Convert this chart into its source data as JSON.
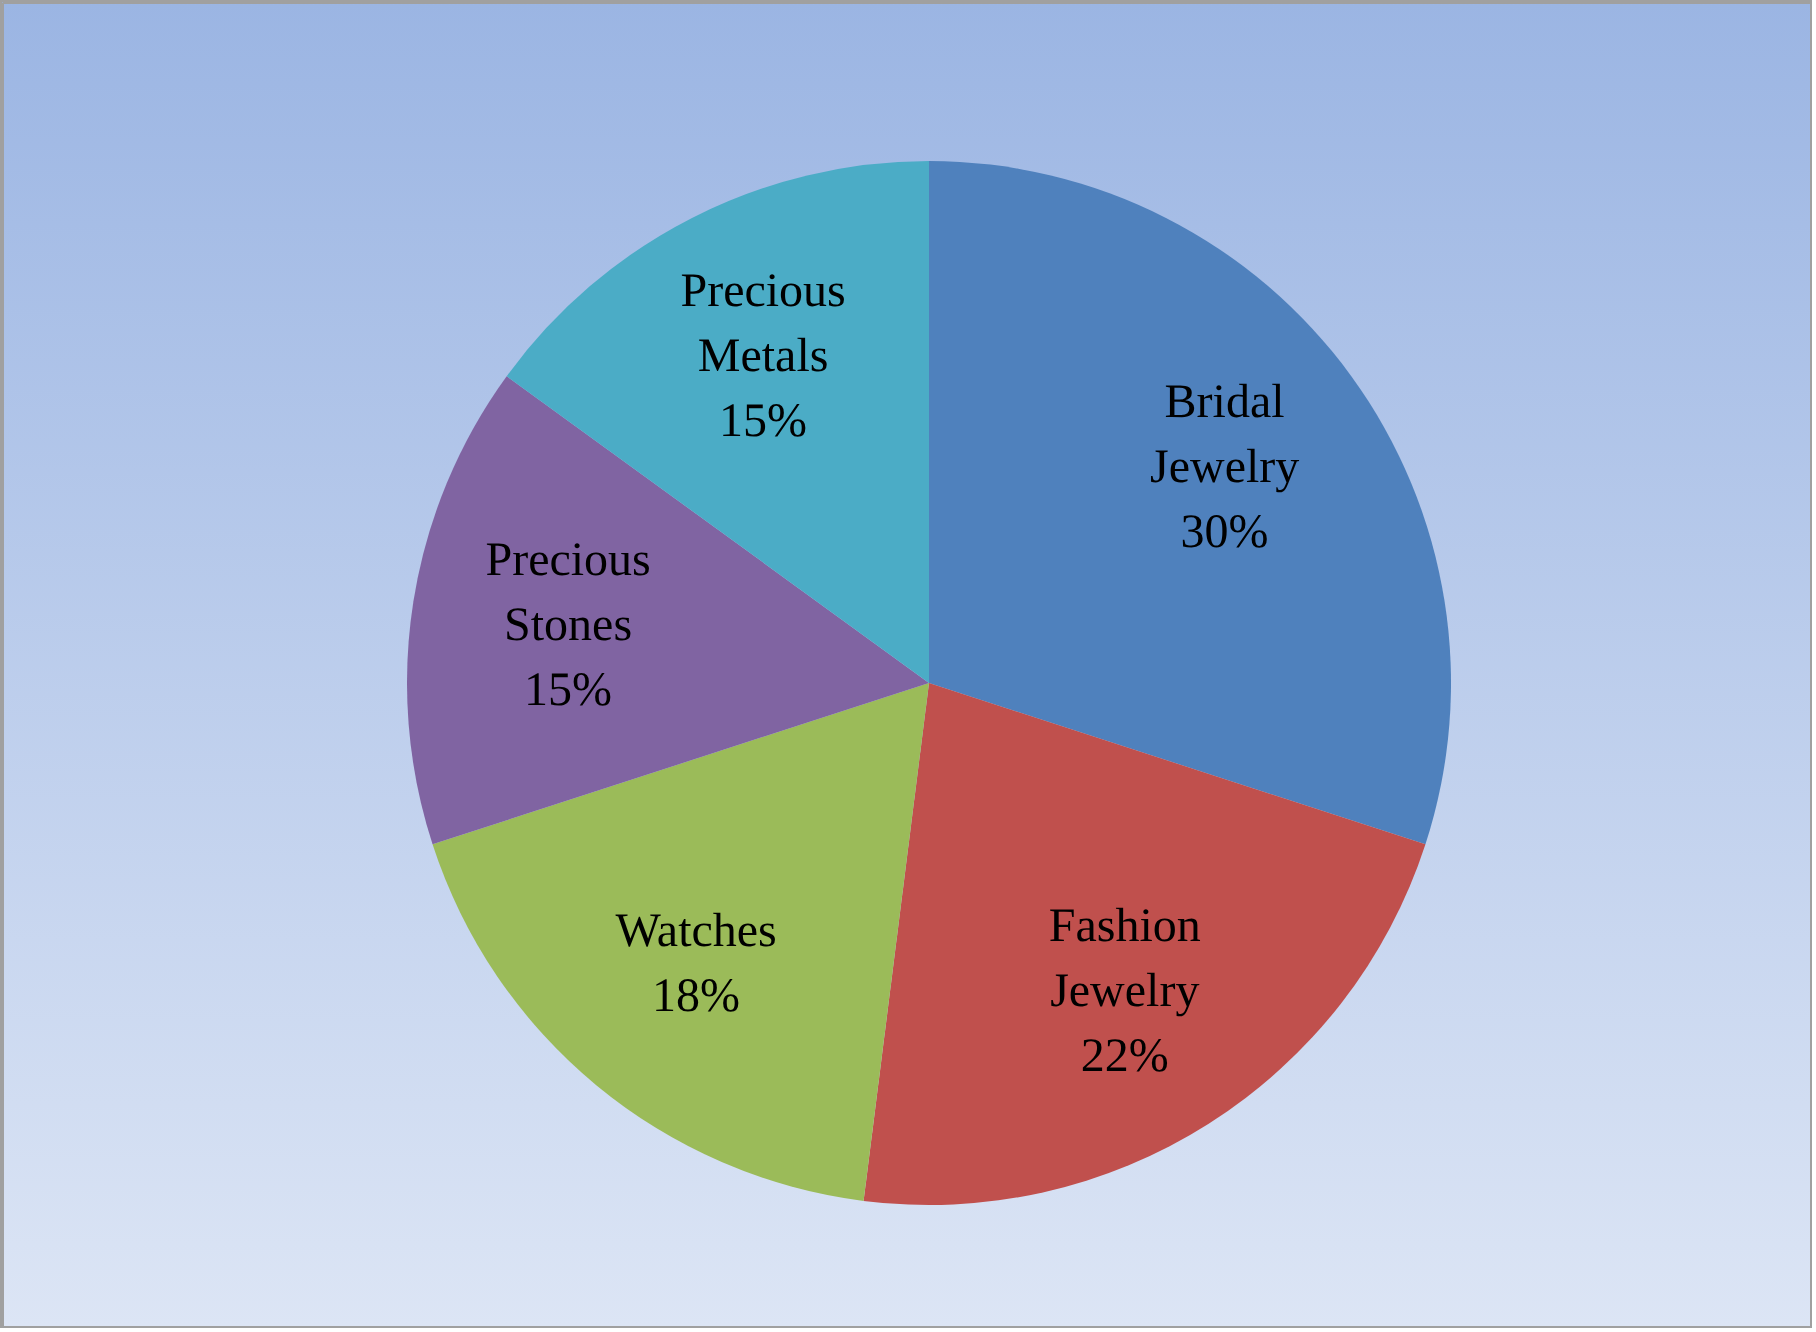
{
  "chart_data": {
    "type": "pie",
    "categories": [
      "Bridal Jewelry",
      "Fashion Jewelry",
      "Watches",
      "Precious Stones",
      "Precious Metals"
    ],
    "values": [
      30,
      22,
      18,
      15,
      15
    ],
    "value_labels": [
      "30%",
      "22%",
      "18%",
      "15%",
      "15%"
    ],
    "colors": [
      "#4f81bd",
      "#c0504d",
      "#9bbb59",
      "#8064a2",
      "#4bacc6"
    ]
  }
}
